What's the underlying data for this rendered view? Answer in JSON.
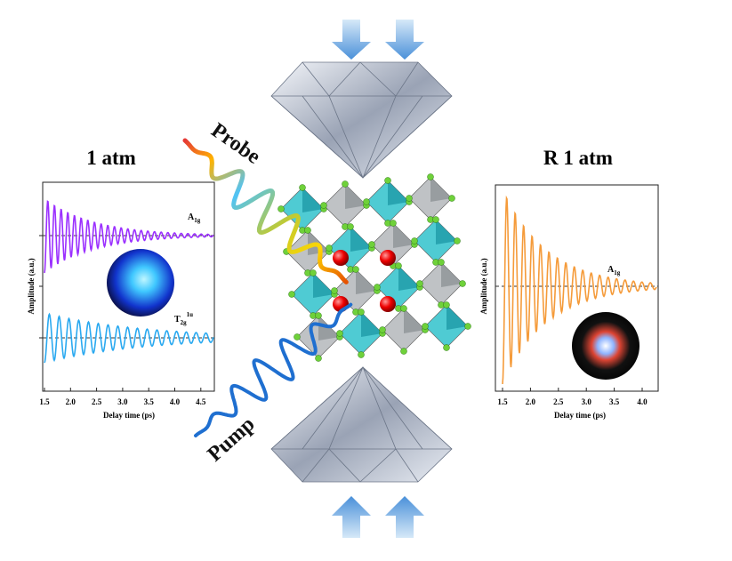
{
  "left_panel": {
    "title": "1 atm",
    "y_label": "Amplitude (a.u.)",
    "x_label": "Delay time (ps)",
    "x_ticks": [
      "1.5",
      "2.0",
      "2.5",
      "3.0",
      "3.5",
      "4.0",
      "4.5"
    ],
    "mode_a": {
      "base": "A",
      "sub": "1g"
    },
    "mode_t": {
      "base": "T",
      "sub": "2g",
      "sup": "1u"
    }
  },
  "right_panel": {
    "title": "R 1 atm",
    "y_label": "Amplitude (a.u.)",
    "x_label": "Delay time (ps)",
    "x_ticks": [
      "1.5",
      "2.0",
      "2.5",
      "3.0",
      "3.5",
      "4.0"
    ],
    "mode_a": {
      "base": "A",
      "sub": "1g"
    }
  },
  "beams": {
    "probe": "Probe",
    "pump": "Pump"
  }
}
